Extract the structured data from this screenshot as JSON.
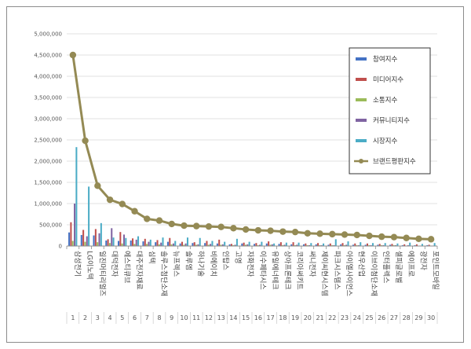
{
  "chart_data": {
    "type": "bar+line",
    "ylim": [
      0,
      5000000
    ],
    "y_ticks": [
      "0",
      "500,000",
      "1,000,000",
      "1,500,000",
      "2,000,000",
      "2,500,000",
      "3,000,000",
      "3,500,000",
      "4,000,000",
      "4,500,000",
      "5,000,000"
    ],
    "x_indices": [
      "1",
      "2",
      "3",
      "4",
      "5",
      "6",
      "7",
      "8",
      "9",
      "10",
      "11",
      "12",
      "13",
      "14",
      "15",
      "16",
      "17",
      "18",
      "19",
      "20",
      "21",
      "22",
      "23",
      "24",
      "25",
      "26",
      "27",
      "28",
      "29",
      "30"
    ],
    "categories": [
      "삼성전기",
      "LG이노텍",
      "일진머티리얼즈",
      "대덕전자",
      "에스티큐브",
      "대주전자재료",
      "심텍",
      "솔루스첨단소재",
      "뉴프렉스",
      "솔루엠",
      "하나기술",
      "비에이치",
      "인탑스",
      "고영",
      "자화전자",
      "이수페타시스",
      "유일에너테크",
      "상아프론테크",
      "코리아써키트",
      "써니전자",
      "제이씨현시스템",
      "파크시스템스",
      "아이엘사이언스",
      "현우산업",
      "이브이첨단소재",
      "인터플렉스",
      "셀피글로벌",
      "에이프로",
      "광전자",
      "포인트모바일"
    ],
    "series": [
      {
        "name": "참여지수",
        "color": "#4472c4",
        "values": [
          320000,
          260000,
          250000,
          130000,
          120000,
          130000,
          110000,
          90000,
          100000,
          60000,
          70000,
          70000,
          60000,
          40000,
          60000,
          50000,
          60000,
          50000,
          40000,
          40000,
          40000,
          30000,
          40000,
          30000,
          30000,
          30000,
          30000,
          20000,
          20000,
          20000
        ]
      },
      {
        "name": "미디어지수",
        "color": "#c0504d",
        "values": [
          560000,
          380000,
          400000,
          160000,
          330000,
          180000,
          170000,
          140000,
          190000,
          100000,
          90000,
          120000,
          150000,
          50000,
          80000,
          70000,
          110000,
          90000,
          90000,
          60000,
          70000,
          60000,
          70000,
          60000,
          60000,
          50000,
          50000,
          40000,
          40000,
          30000
        ]
      },
      {
        "name": "소통지수",
        "color": "#9bbb59",
        "values": [
          120000,
          100000,
          90000,
          70000,
          60000,
          50000,
          50000,
          40000,
          40000,
          30000,
          30000,
          30000,
          30000,
          20000,
          30000,
          20000,
          30000,
          20000,
          20000,
          20000,
          20000,
          20000,
          20000,
          20000,
          20000,
          20000,
          20000,
          10000,
          10000,
          10000
        ]
      },
      {
        "name": "커뮤니티지수",
        "color": "#8064a2",
        "values": [
          1000000,
          230000,
          300000,
          420000,
          270000,
          150000,
          100000,
          80000,
          60000,
          60000,
          40000,
          50000,
          40000,
          30000,
          40000,
          30000,
          40000,
          30000,
          30000,
          20000,
          20000,
          20000,
          30000,
          20000,
          20000,
          20000,
          20000,
          20000,
          10000,
          10000
        ]
      },
      {
        "name": "시장지수",
        "color": "#4bacc6",
        "values": [
          2330000,
          1400000,
          540000,
          200000,
          190000,
          230000,
          150000,
          200000,
          120000,
          200000,
          190000,
          120000,
          100000,
          170000,
          100000,
          100000,
          60000,
          80000,
          80000,
          70000,
          60000,
          160000,
          110000,
          90000,
          70000,
          70000,
          60000,
          80000,
          50000,
          70000
        ]
      }
    ],
    "line_series": {
      "name": "브랜드평판지수",
      "color": "#948a54",
      "values": [
        4500000,
        2480000,
        1420000,
        1090000,
        990000,
        820000,
        640000,
        600000,
        520000,
        480000,
        470000,
        460000,
        450000,
        420000,
        390000,
        370000,
        360000,
        340000,
        330000,
        300000,
        290000,
        280000,
        270000,
        260000,
        240000,
        220000,
        210000,
        190000,
        170000,
        160000
      ]
    },
    "legend_position": "right"
  }
}
